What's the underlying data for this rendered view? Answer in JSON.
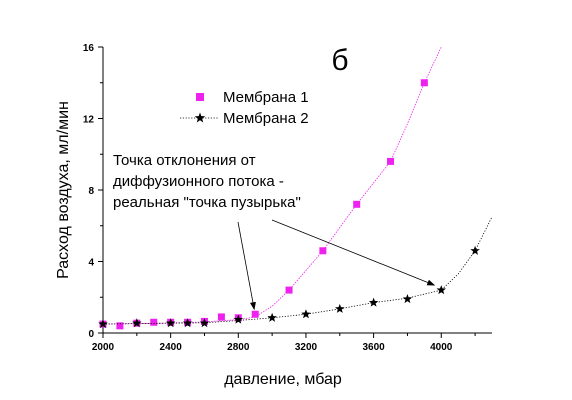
{
  "chart_data": {
    "type": "scatter",
    "panel_label": "б",
    "xlabel": "давление, мбар",
    "ylabel": "Расход воздуха, мл/мин",
    "xlim": [
      2000,
      4300
    ],
    "ylim": [
      0,
      16
    ],
    "xticks": [
      2000,
      2400,
      2800,
      3200,
      3600,
      4000
    ],
    "yticks": [
      0,
      4,
      8,
      12,
      16
    ],
    "grid": false,
    "legend_position": "top-left",
    "series": [
      {
        "name": "Мембрана 1",
        "marker": "square",
        "color": "#ee22ee",
        "x": [
          2000,
          2100,
          2200,
          2300,
          2400,
          2500,
          2600,
          2700,
          2800,
          2900,
          3100,
          3300,
          3500,
          3700,
          3900
        ],
        "y": [
          0.5,
          0.4,
          0.55,
          0.6,
          0.6,
          0.6,
          0.65,
          0.9,
          0.85,
          1.05,
          2.4,
          4.6,
          7.2,
          9.6,
          14.0
        ],
        "fit_x": [
          2000,
          2200,
          2400,
          2600,
          2800,
          2900,
          3000,
          3100,
          3200,
          3300,
          3400,
          3500,
          3600,
          3700,
          3800,
          3900,
          4000
        ],
        "fit_y": [
          0.5,
          0.52,
          0.56,
          0.62,
          0.75,
          0.9,
          1.5,
          2.4,
          3.5,
          4.6,
          5.9,
          7.2,
          8.4,
          9.6,
          11.7,
          14.0,
          16.0
        ]
      },
      {
        "name": "Мембрана 2",
        "marker": "star",
        "color": "#000000",
        "x": [
          2000,
          2200,
          2400,
          2500,
          2600,
          2800,
          3000,
          3200,
          3400,
          3600,
          3800,
          4000,
          4200
        ],
        "y": [
          0.5,
          0.55,
          0.55,
          0.55,
          0.55,
          0.75,
          0.85,
          1.05,
          1.35,
          1.7,
          1.9,
          2.4,
          4.6
        ],
        "fit_x": [
          2000,
          2200,
          2400,
          2600,
          2800,
          3000,
          3200,
          3400,
          3600,
          3800,
          4000,
          4100,
          4200,
          4300
        ],
        "fit_y": [
          0.5,
          0.53,
          0.55,
          0.57,
          0.7,
          0.85,
          1.05,
          1.35,
          1.7,
          1.95,
          2.4,
          3.3,
          4.6,
          6.5
        ]
      }
    ],
    "annotation": {
      "lines": [
        "Точка отклонения от",
        "диффузионного потока -",
        "реальная \"точка пузырька\""
      ],
      "arrow_targets": [
        {
          "x": 2900,
          "y": 1.05
        },
        {
          "x": 4000,
          "y": 2.4
        }
      ]
    }
  }
}
